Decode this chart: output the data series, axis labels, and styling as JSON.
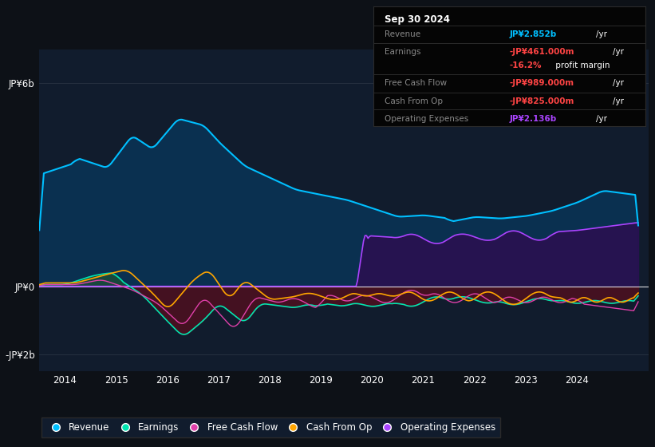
{
  "bg_color": "#0d1117",
  "plot_bg_color": "#111c2d",
  "title_box_bg": "#0a0a0a",
  "ylabel_top": "JP¥6b",
  "ylabel_zero": "JP¥0",
  "ylabel_bottom": "-JP¥2b",
  "x_labels": [
    "2014",
    "2015",
    "2016",
    "2017",
    "2018",
    "2019",
    "2020",
    "2021",
    "2022",
    "2023",
    "2024"
  ],
  "colors": {
    "revenue": "#00bfff",
    "earnings": "#00e5b0",
    "free_cash_flow": "#e040aa",
    "cash_from_op": "#ffa500",
    "operating_expenses": "#aa44ff",
    "revenue_fill": "#0a3050",
    "earnings_fill_pos": "#1a4a3a",
    "earnings_fill_neg": "#4a1020",
    "op_exp_fill": "#2a1050",
    "zero_line": "#ffffff",
    "grid": "#ffffff"
  },
  "info_box": {
    "date": "Sep 30 2024",
    "rows": [
      {
        "label": "Revenue",
        "value": "JP¥2.852b",
        "value_color": "#00bfff",
        "suffix": " /yr",
        "extra": null
      },
      {
        "label": "Earnings",
        "value": "-JP¥461.000m",
        "value_color": "#ff4444",
        "suffix": " /yr",
        "extra": {
          "text": "-16.2% profit margin",
          "red": "-16.2%",
          "white": " profit margin"
        }
      },
      {
        "label": "Free Cash Flow",
        "value": "-JP¥989.000m",
        "value_color": "#ff4444",
        "suffix": " /yr",
        "extra": null
      },
      {
        "label": "Cash From Op",
        "value": "-JP¥825.000m",
        "value_color": "#ff4444",
        "suffix": " /yr",
        "extra": null
      },
      {
        "label": "Operating Expenses",
        "value": "JP¥2.136b",
        "value_color": "#aa44ff",
        "suffix": " /yr",
        "extra": null
      }
    ]
  },
  "legend": [
    {
      "label": "Revenue",
      "color": "#00bfff"
    },
    {
      "label": "Earnings",
      "color": "#00e5b0"
    },
    {
      "label": "Free Cash Flow",
      "color": "#e040aa"
    },
    {
      "label": "Cash From Op",
      "color": "#ffa500"
    },
    {
      "label": "Operating Expenses",
      "color": "#aa44ff"
    }
  ],
  "ymin": -2.5,
  "ymax": 7.0,
  "xmin": 2013.5,
  "xmax": 2025.4
}
